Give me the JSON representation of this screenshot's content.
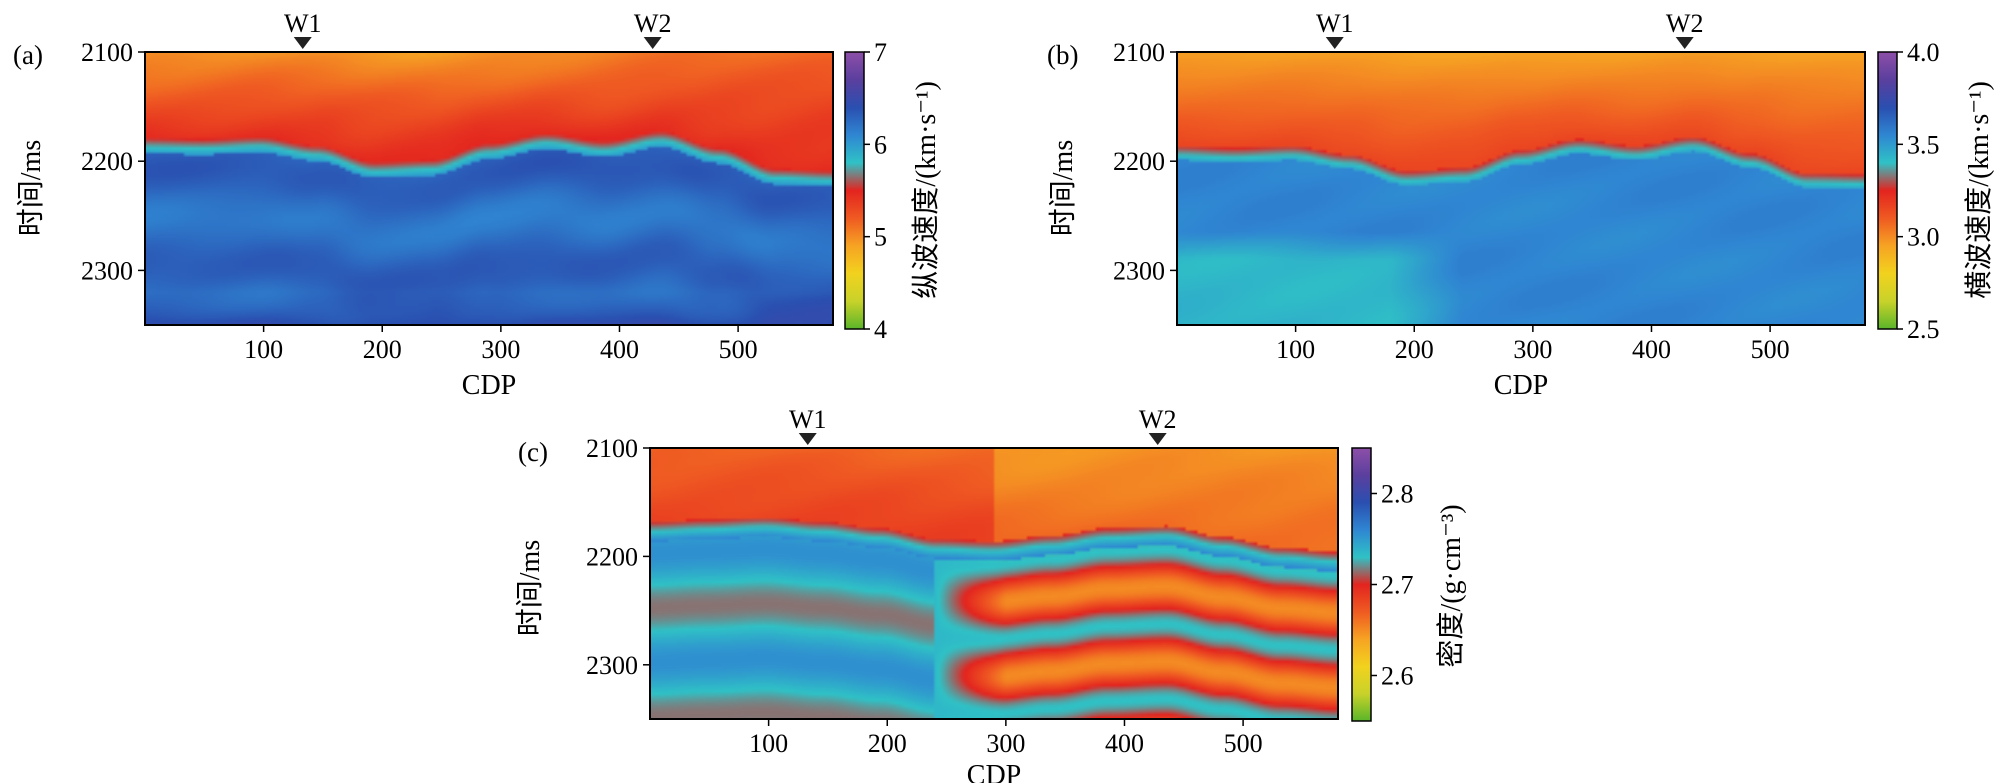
{
  "chart_data": [
    {
      "type": "heatmap",
      "panel_label": "(a)",
      "xlabel": "CDP",
      "ylabel": "时间/ms",
      "xlim": [
        0,
        580
      ],
      "ylim": [
        2100,
        2350
      ],
      "x_ticks": [
        "100",
        "200",
        "300",
        "400",
        "500"
      ],
      "y_ticks": [
        "2100",
        "2200",
        "2300"
      ],
      "colorbar_label": "纵波速度/(km·s⁻¹)",
      "colorbar_range": [
        4,
        7
      ],
      "colorbar_ticks": [
        "7",
        "6",
        "5",
        "4"
      ],
      "wells": [
        {
          "name": "W1",
          "cdp": 133
        },
        {
          "name": "W2",
          "cdp": 428
        }
      ],
      "horizon_time": [
        2183,
        2184,
        2182,
        2190,
        2205,
        2203,
        2188,
        2179,
        2186,
        2177,
        2192,
        2211,
        2213
      ],
      "upper_value": 5.2,
      "lower_value": 6.3
    },
    {
      "type": "heatmap",
      "panel_label": "(b)",
      "xlabel": "CDP",
      "ylabel": "时间/ms",
      "xlim": [
        0,
        580
      ],
      "ylim": [
        2100,
        2350
      ],
      "x_ticks": [
        "100",
        "200",
        "300",
        "400",
        "500"
      ],
      "y_ticks": [
        "2100",
        "2200",
        "2300"
      ],
      "colorbar_label": "横波速度/(km·s⁻¹)",
      "colorbar_range": [
        2.5,
        4.0
      ],
      "colorbar_ticks": [
        "4.0",
        "3.5",
        "3.0",
        "2.5"
      ],
      "wells": [
        {
          "name": "W1",
          "cdp": 133
        },
        {
          "name": "W2",
          "cdp": 428
        }
      ],
      "horizon_time": [
        2190,
        2192,
        2190,
        2198,
        2213,
        2210,
        2194,
        2184,
        2190,
        2182,
        2197,
        2215,
        2216
      ],
      "upper_value": 3.1,
      "lower_value": 3.55
    },
    {
      "type": "heatmap",
      "panel_label": "(c)",
      "xlabel": "CDP",
      "ylabel": "时间/ms",
      "xlim": [
        0,
        580
      ],
      "ylim": [
        2100,
        2350
      ],
      "x_ticks": [
        "100",
        "200",
        "300",
        "400",
        "500"
      ],
      "y_ticks": [
        "2100",
        "2200",
        "2300"
      ],
      "colorbar_label": "密度/(g·cm⁻³)",
      "colorbar_range": [
        2.55,
        2.85
      ],
      "colorbar_ticks": [
        "2.8",
        "2.7",
        "2.6"
      ],
      "wells": [
        {
          "name": "W1",
          "cdp": 133
        },
        {
          "name": "W2",
          "cdp": 428
        }
      ],
      "horizon_time": [
        2172,
        2170,
        2168,
        2172,
        2178,
        2188,
        2190,
        2185,
        2178,
        2176,
        2186,
        2196,
        2200
      ],
      "upper_value": 2.66,
      "lower_value": 2.73
    }
  ],
  "colorscale": [
    "#5ab52a",
    "#c8d22a",
    "#f2d21e",
    "#f6a323",
    "#ef5a22",
    "#e3241f",
    "#2fc2c6",
    "#2f86d2",
    "#2a4fb0",
    "#5b3f9e",
    "#8d4fa8"
  ]
}
